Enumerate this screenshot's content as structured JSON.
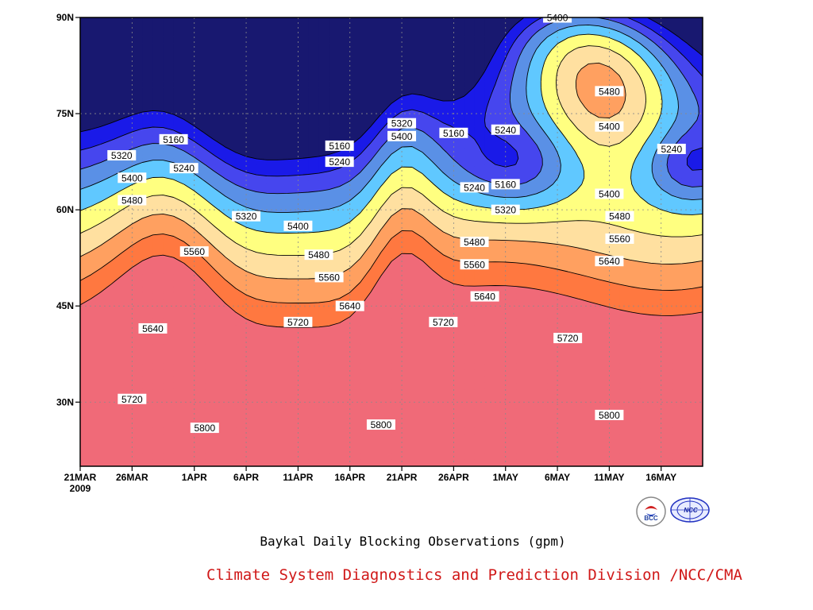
{
  "chart_data": {
    "type": "contour",
    "title": "Baykal Daily Blocking Observations (gpm)",
    "credit": "Climate System Diagnostics and Prediction Division /NCC/CMA",
    "x_ticks": [
      "21MAR",
      "26MAR",
      "1APR",
      "6APR",
      "11APR",
      "16APR",
      "21APR",
      "26APR",
      "1MAY",
      "6MAY",
      "11MAY",
      "16MAY"
    ],
    "x_year_label": "2009",
    "y_ticks": [
      "90N",
      "75N",
      "60N",
      "45N",
      "30N"
    ],
    "x_range": [
      "21MAR2009",
      "20MAY2009"
    ],
    "y_range": [
      20,
      90
    ],
    "contour_levels": [
      5160,
      5240,
      5320,
      5400,
      5480,
      5560,
      5640,
      5720,
      5800
    ],
    "fill_colors": [
      "#181870",
      "#1a1ae8",
      "#4646ee",
      "#5a90e6",
      "#60c8ff",
      "#ffff80",
      "#ffe0a0",
      "#ffa060",
      "#ff7840",
      "#f06a78"
    ],
    "contour_labels": [
      {
        "text": "5160",
        "date": "30MAR",
        "lat": 71
      },
      {
        "text": "5320",
        "date": "25MAR",
        "lat": 68.5
      },
      {
        "text": "5240",
        "date": "31MAR",
        "lat": 66.5
      },
      {
        "text": "5400",
        "date": "26MAR",
        "lat": 65
      },
      {
        "text": "5480",
        "date": "26MAR",
        "lat": 61.5
      },
      {
        "text": "5560",
        "date": "1APR",
        "lat": 53.5
      },
      {
        "text": "5640",
        "date": "28MAR",
        "lat": 41.5
      },
      {
        "text": "5720",
        "date": "26MAR",
        "lat": 30.5
      },
      {
        "text": "5800",
        "date": "2APR",
        "lat": 26
      },
      {
        "text": "5320",
        "date": "6APR",
        "lat": 59
      },
      {
        "text": "5400",
        "date": "11APR",
        "lat": 57.5
      },
      {
        "text": "5480",
        "date": "13APR",
        "lat": 53
      },
      {
        "text": "5560",
        "date": "14APR",
        "lat": 49.5
      },
      {
        "text": "5640",
        "date": "16APR",
        "lat": 45
      },
      {
        "text": "5720",
        "date": "11APR",
        "lat": 42.5
      },
      {
        "text": "5800",
        "date": "19APR",
        "lat": 26.5
      },
      {
        "text": "5160",
        "date": "15APR",
        "lat": 70
      },
      {
        "text": "5240",
        "date": "15APR",
        "lat": 67.5
      },
      {
        "text": "5320",
        "date": "21APR",
        "lat": 73.5
      },
      {
        "text": "5400",
        "date": "21APR",
        "lat": 71.5
      },
      {
        "text": "5160",
        "date": "26APR",
        "lat": 72
      },
      {
        "text": "5240",
        "date": "1MAY",
        "lat": 72.5
      },
      {
        "text": "5240",
        "date": "28APR",
        "lat": 63.5
      },
      {
        "text": "5160",
        "date": "1MAY",
        "lat": 64
      },
      {
        "text": "5320",
        "date": "1MAY",
        "lat": 60
      },
      {
        "text": "5480",
        "date": "28APR",
        "lat": 55
      },
      {
        "text": "5560",
        "date": "28APR",
        "lat": 51.5
      },
      {
        "text": "5640",
        "date": "29APR",
        "lat": 46.5
      },
      {
        "text": "5720",
        "date": "25APR",
        "lat": 42.5
      },
      {
        "text": "5640",
        "date": "11MAY",
        "lat": 52
      },
      {
        "text": "5720",
        "date": "7MAY",
        "lat": 40
      },
      {
        "text": "5800",
        "date": "11MAY",
        "lat": 28
      },
      {
        "text": "5400",
        "date": "6MAY",
        "lat": 90
      },
      {
        "text": "5480",
        "date": "11MAY",
        "lat": 78.5
      },
      {
        "text": "5400",
        "date": "11MAY",
        "lat": 73
      },
      {
        "text": "5400",
        "date": "11MAY",
        "lat": 62.5
      },
      {
        "text": "5480",
        "date": "12MAY",
        "lat": 59
      },
      {
        "text": "5560",
        "date": "12MAY",
        "lat": 55.5
      },
      {
        "text": "5240",
        "date": "17MAY",
        "lat": 69.5
      }
    ],
    "grid": true,
    "logos": [
      "BCC",
      "NCC"
    ]
  }
}
